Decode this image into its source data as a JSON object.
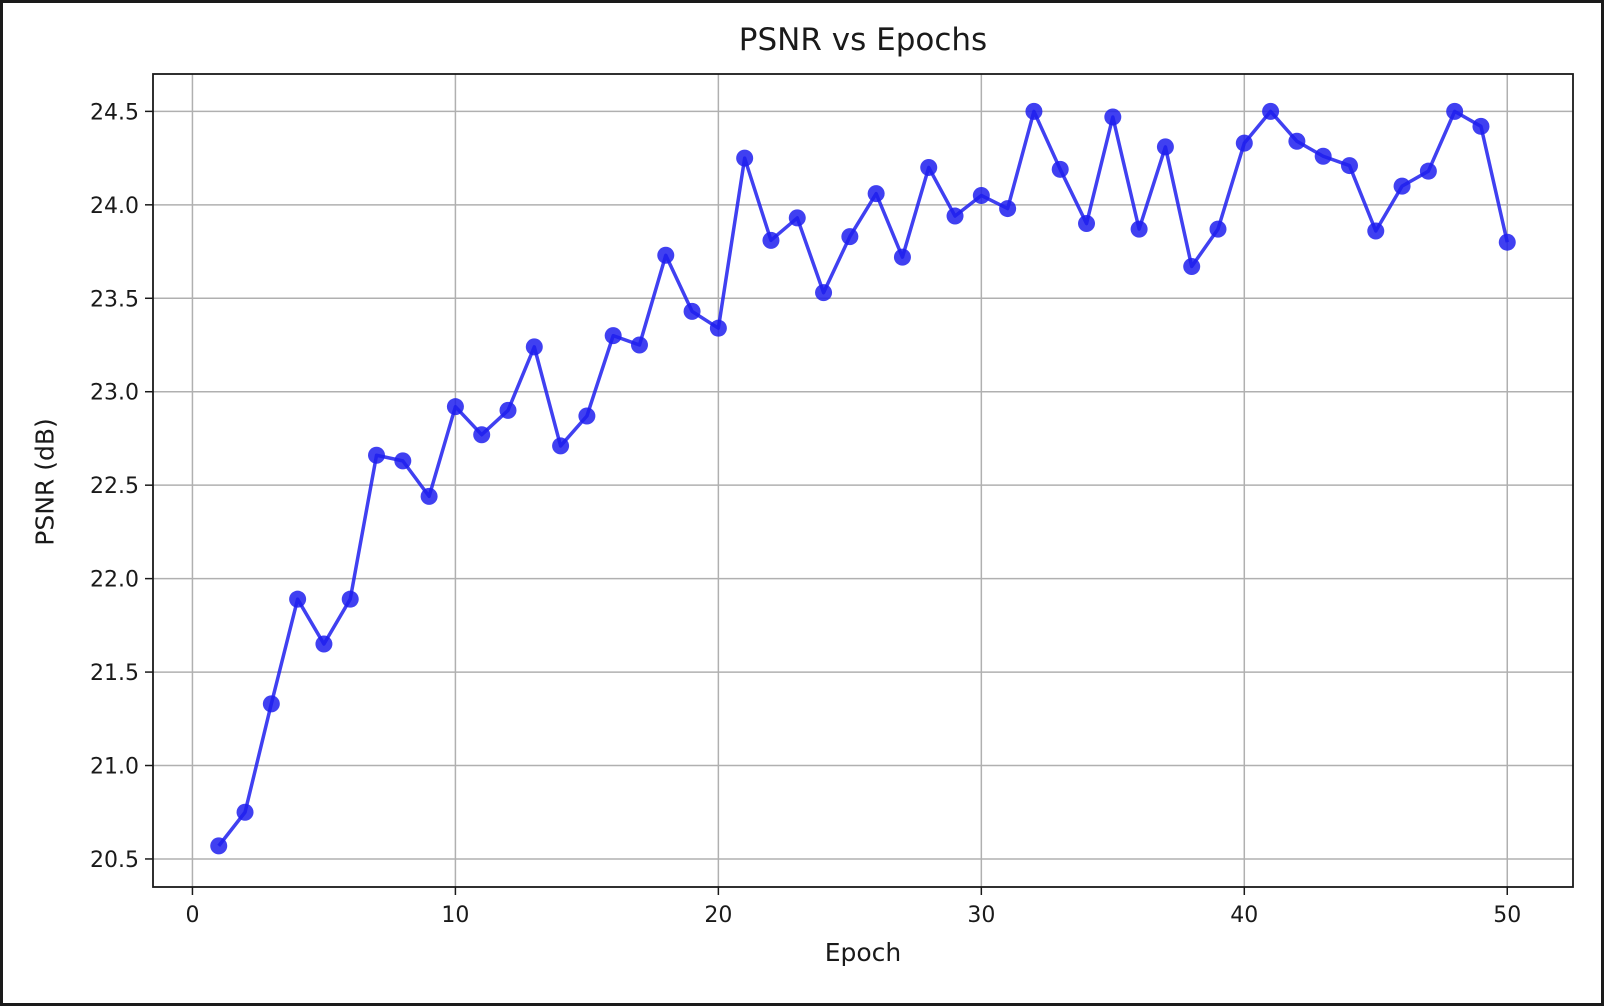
{
  "chart_data": {
    "type": "line",
    "title": "PSNR vs Epochs",
    "xlabel": "Epoch",
    "ylabel": "PSNR (dB)",
    "xlim": [
      -1.5,
      52.5
    ],
    "ylim": [
      20.35,
      24.7
    ],
    "xticks": [
      "0",
      "10",
      "20",
      "30",
      "40",
      "50"
    ],
    "yticks": [
      "20.5",
      "21.0",
      "21.5",
      "22.0",
      "22.5",
      "23.0",
      "23.5",
      "24.0",
      "24.5"
    ],
    "grid": true,
    "line_color": "#1f1fef",
    "marker": "circle",
    "series": [
      {
        "x": [
          1,
          2,
          3,
          4,
          5,
          6,
          7,
          8,
          9,
          10,
          11,
          12,
          13,
          14,
          15,
          16,
          17,
          18,
          19,
          20,
          21,
          22,
          23,
          24,
          25,
          26,
          27,
          28,
          29,
          30,
          31,
          32,
          33,
          34,
          35,
          36,
          37,
          38,
          39,
          40,
          41,
          42,
          43,
          44,
          45,
          46,
          47,
          48,
          49,
          50
        ],
        "values": [
          20.57,
          20.75,
          21.33,
          21.89,
          21.65,
          21.89,
          22.66,
          22.63,
          22.44,
          22.92,
          22.77,
          22.9,
          23.24,
          22.71,
          22.87,
          23.3,
          23.25,
          23.73,
          23.43,
          23.34,
          24.25,
          23.81,
          23.93,
          23.53,
          23.83,
          24.06,
          23.72,
          24.2,
          23.94,
          24.05,
          23.98,
          24.5,
          24.19,
          23.9,
          24.47,
          23.87,
          24.31,
          23.67,
          23.87,
          24.33,
          24.5,
          24.34,
          24.26,
          24.21,
          23.86,
          24.1,
          24.18,
          24.5,
          24.42,
          23.8
        ]
      }
    ]
  }
}
